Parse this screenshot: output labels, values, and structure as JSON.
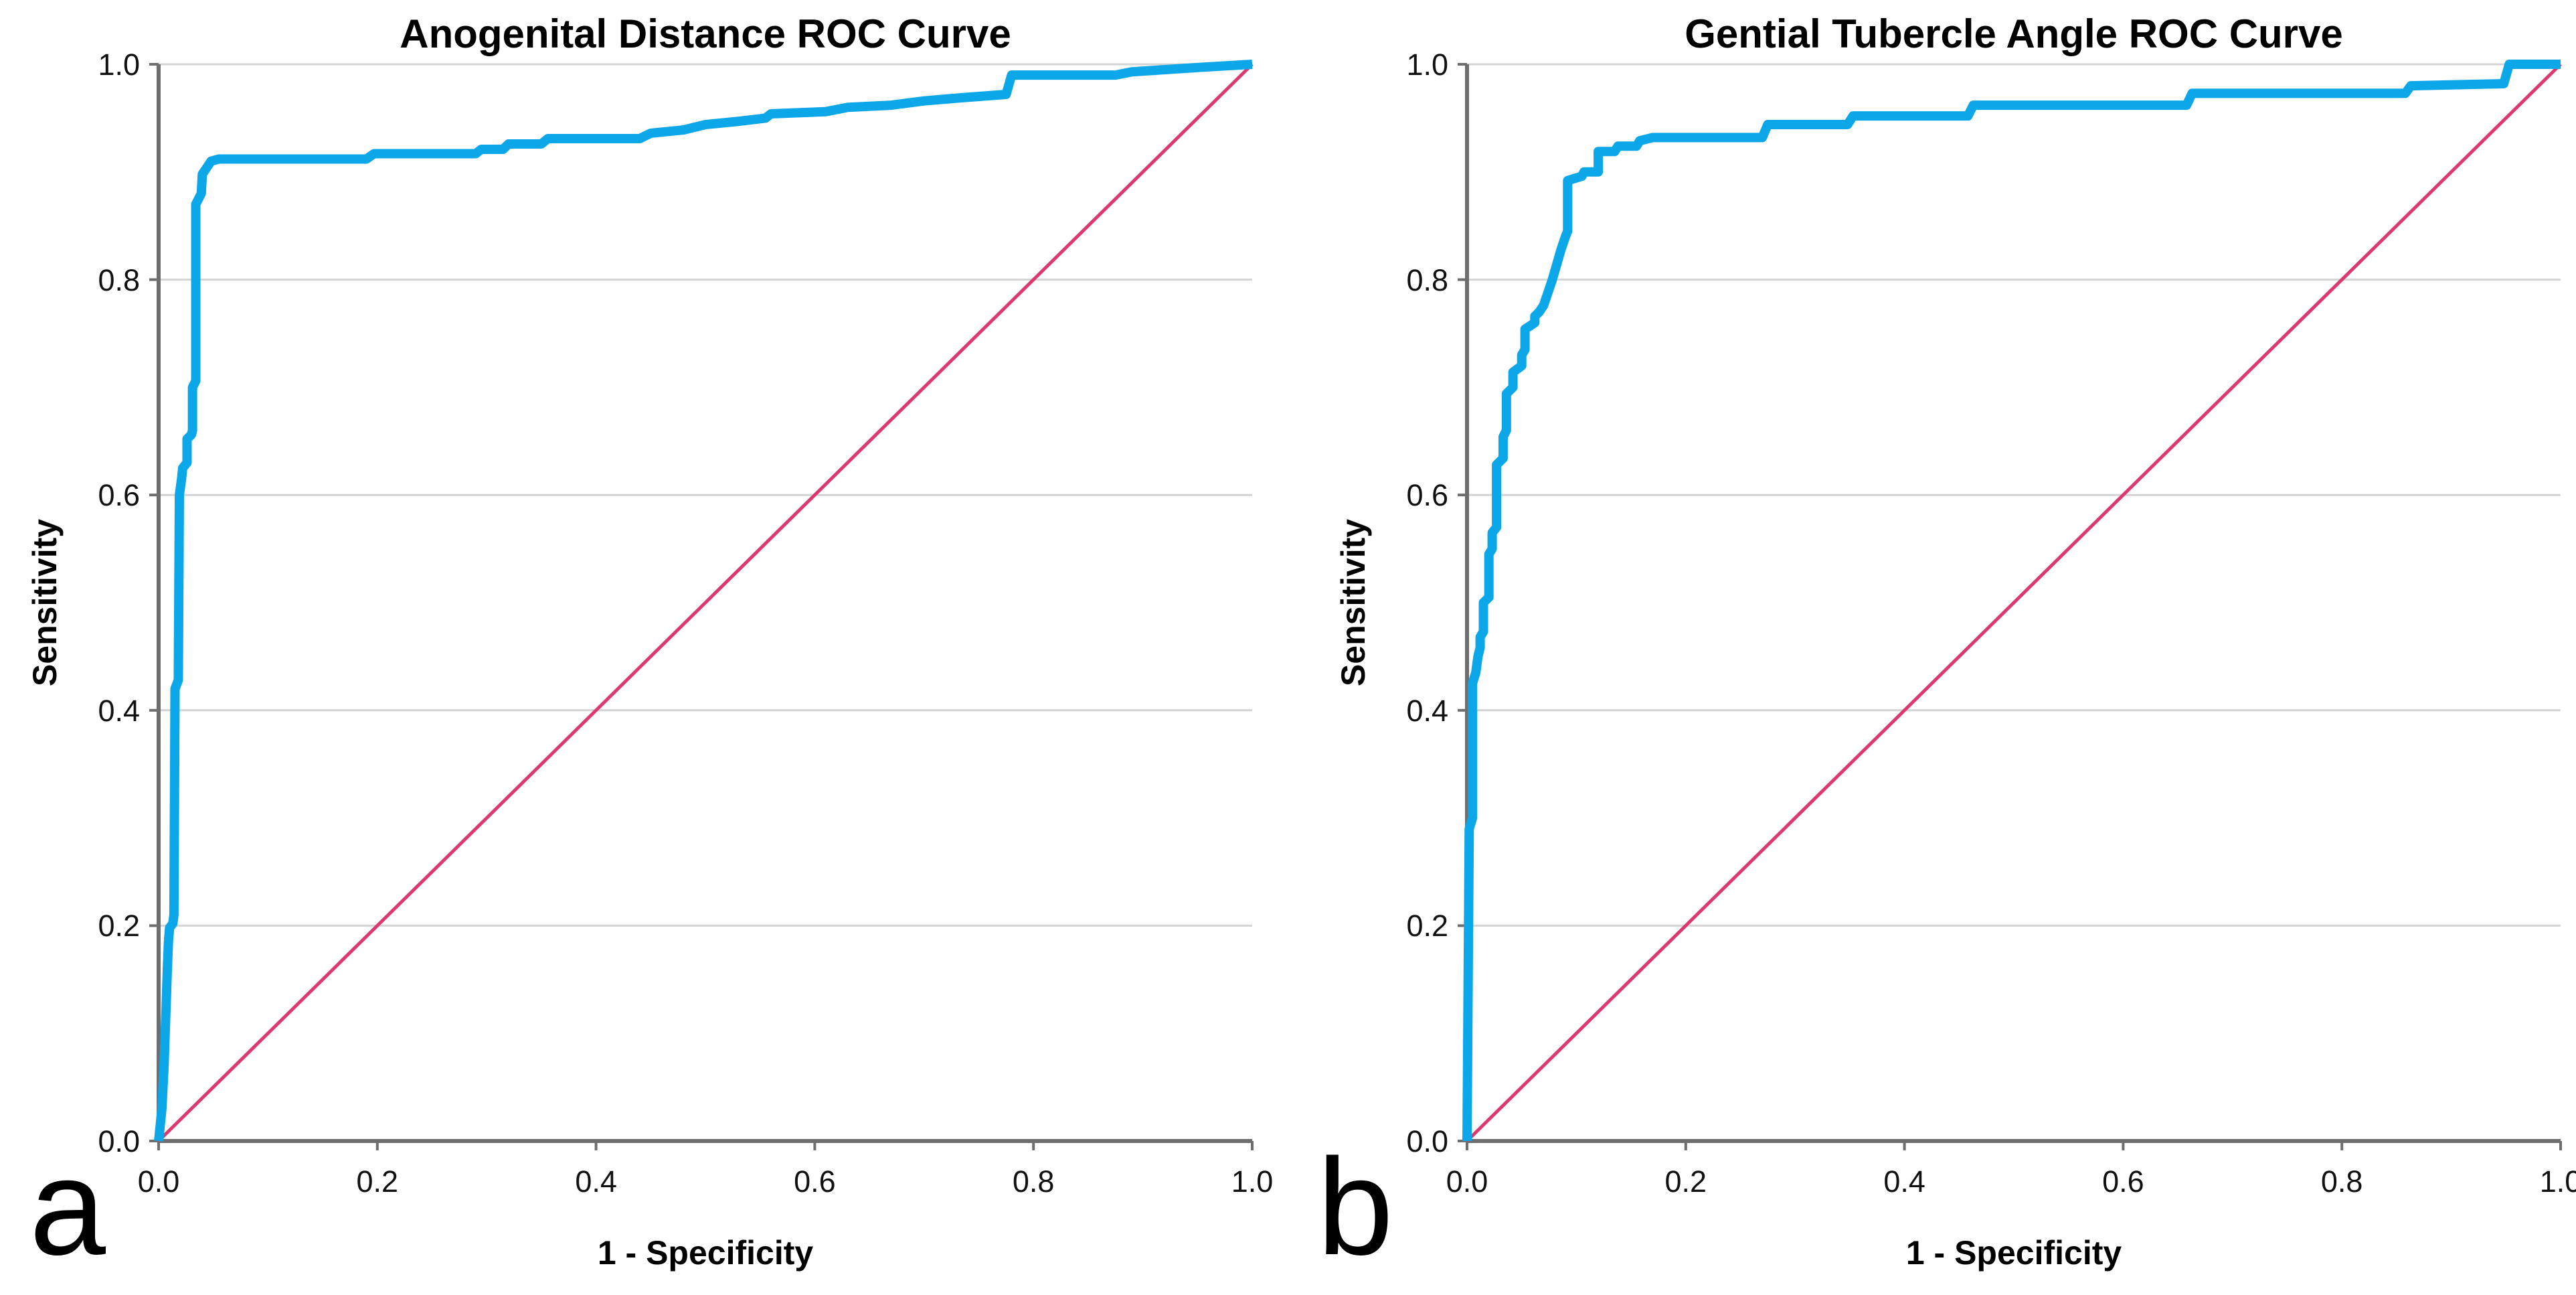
{
  "figure": {
    "panels": [
      {
        "letter": "a",
        "title": "Anogenital Distance ROC Curve",
        "x_axis_label": "1 - Specificity",
        "y_axis_label": "Sensitivity"
      },
      {
        "letter": "b",
        "title": "Gential Tubercle Angle ROC Curve",
        "x_axis_label": "1 - Specificity",
        "y_axis_label": "Sensitivity"
      }
    ]
  },
  "chart_data": [
    {
      "type": "line",
      "title": "Anogenital Distance ROC Curve",
      "xlabel": "1 - Specificity",
      "ylabel": "Sensitivity",
      "xlim": [
        0,
        1
      ],
      "ylim": [
        0,
        1
      ],
      "xticks": [
        0,
        0.2,
        0.4,
        0.6,
        0.8,
        1.0
      ],
      "yticks": [
        0,
        0.2,
        0.4,
        0.6,
        0.8,
        1.0
      ],
      "xtick_labels": [
        "0.0",
        "0.2",
        "0.4",
        "0.6",
        "0.8",
        "1.0"
      ],
      "ytick_labels": [
        "0.0",
        "0.2",
        "0.4",
        "0.6",
        "0.8",
        "1.0"
      ],
      "grid": "horizontal",
      "grid_color": "#d4d4d4",
      "axis_color": "#6e6e6e",
      "legend": "none",
      "series": [
        {
          "name": "ROC curve",
          "color": "#0ba7e9",
          "width": 14,
          "points": [
            [
              0,
              0
            ],
            [
              0.003,
              0.03
            ],
            [
              0.005,
              0.07
            ],
            [
              0.006,
              0.1
            ],
            [
              0.007,
              0.13
            ],
            [
              0.008,
              0.16
            ],
            [
              0.009,
              0.185
            ],
            [
              0.01,
              0.198
            ],
            [
              0.013,
              0.202
            ],
            [
              0.014,
              0.21
            ],
            [
              0.015,
              0.42
            ],
            [
              0.018,
              0.428
            ],
            [
              0.019,
              0.6
            ],
            [
              0.021,
              0.615
            ],
            [
              0.022,
              0.625
            ],
            [
              0.026,
              0.63
            ],
            [
              0.026,
              0.652
            ],
            [
              0.03,
              0.656
            ],
            [
              0.031,
              0.66
            ],
            [
              0.031,
              0.7
            ],
            [
              0.034,
              0.706
            ],
            [
              0.034,
              0.87
            ],
            [
              0.037,
              0.876
            ],
            [
              0.039,
              0.88
            ],
            [
              0.04,
              0.898
            ],
            [
              0.044,
              0.904
            ],
            [
              0.048,
              0.91
            ],
            [
              0.055,
              0.912
            ],
            [
              0.19,
              0.912
            ],
            [
              0.197,
              0.917
            ],
            [
              0.29,
              0.917
            ],
            [
              0.295,
              0.921
            ],
            [
              0.315,
              0.921
            ],
            [
              0.32,
              0.926
            ],
            [
              0.35,
              0.926
            ],
            [
              0.356,
              0.931
            ],
            [
              0.44,
              0.931
            ],
            [
              0.45,
              0.936
            ],
            [
              0.48,
              0.939
            ],
            [
              0.5,
              0.944
            ],
            [
              0.53,
              0.947
            ],
            [
              0.555,
              0.95
            ],
            [
              0.56,
              0.954
            ],
            [
              0.61,
              0.956
            ],
            [
              0.63,
              0.96
            ],
            [
              0.67,
              0.962
            ],
            [
              0.7,
              0.966
            ],
            [
              0.735,
              0.969
            ],
            [
              0.775,
              0.972
            ],
            [
              0.78,
              0.99
            ],
            [
              0.875,
              0.99
            ],
            [
              0.89,
              0.993
            ],
            [
              0.95,
              0.997
            ],
            [
              1,
              1
            ]
          ]
        },
        {
          "name": "Reference diagonal",
          "color": "#dc3a6e",
          "width": 5,
          "points": [
            [
              0,
              0
            ],
            [
              1,
              1
            ]
          ]
        }
      ]
    },
    {
      "type": "line",
      "title": "Gential Tubercle Angle ROC Curve",
      "xlabel": "1 - Specificity",
      "ylabel": "Sensitivity",
      "xlim": [
        0,
        1
      ],
      "ylim": [
        0,
        1
      ],
      "xticks": [
        0,
        0.2,
        0.4,
        0.6,
        0.8,
        1.0
      ],
      "yticks": [
        0,
        0.2,
        0.4,
        0.6,
        0.8,
        1.0
      ],
      "xtick_labels": [
        "0.0",
        "0.2",
        "0.4",
        "0.6",
        "0.8",
        "1.0"
      ],
      "ytick_labels": [
        "0.0",
        "0.2",
        "0.4",
        "0.6",
        "0.8",
        "1.0"
      ],
      "grid": "horizontal",
      "grid_color": "#d4d4d4",
      "axis_color": "#6e6e6e",
      "legend": "none",
      "series": [
        {
          "name": "ROC curve",
          "color": "#0ba7e9",
          "width": 14,
          "points": [
            [
              0,
              0
            ],
            [
              0.002,
              0.29
            ],
            [
              0.005,
              0.3
            ],
            [
              0.005,
              0.425
            ],
            [
              0.008,
              0.435
            ],
            [
              0.01,
              0.45
            ],
            [
              0.012,
              0.458
            ],
            [
              0.012,
              0.468
            ],
            [
              0.015,
              0.473
            ],
            [
              0.015,
              0.5
            ],
            [
              0.02,
              0.505
            ],
            [
              0.02,
              0.545
            ],
            [
              0.023,
              0.55
            ],
            [
              0.023,
              0.565
            ],
            [
              0.027,
              0.57
            ],
            [
              0.027,
              0.628
            ],
            [
              0.033,
              0.634
            ],
            [
              0.033,
              0.654
            ],
            [
              0.036,
              0.66
            ],
            [
              0.036,
              0.694
            ],
            [
              0.042,
              0.7
            ],
            [
              0.042,
              0.714
            ],
            [
              0.05,
              0.72
            ],
            [
              0.05,
              0.73
            ],
            [
              0.053,
              0.735
            ],
            [
              0.053,
              0.754
            ],
            [
              0.062,
              0.76
            ],
            [
              0.062,
              0.766
            ],
            [
              0.066,
              0.77
            ],
            [
              0.07,
              0.776
            ],
            [
              0.073,
              0.785
            ],
            [
              0.078,
              0.8
            ],
            [
              0.082,
              0.814
            ],
            [
              0.086,
              0.828
            ],
            [
              0.09,
              0.84
            ],
            [
              0.092,
              0.845
            ],
            [
              0.092,
              0.892
            ],
            [
              0.105,
              0.896
            ],
            [
              0.107,
              0.9
            ],
            [
              0.12,
              0.9
            ],
            [
              0.12,
              0.919
            ],
            [
              0.135,
              0.919
            ],
            [
              0.138,
              0.924
            ],
            [
              0.155,
              0.924
            ],
            [
              0.158,
              0.929
            ],
            [
              0.17,
              0.932
            ],
            [
              0.27,
              0.932
            ],
            [
              0.275,
              0.944
            ],
            [
              0.348,
              0.944
            ],
            [
              0.353,
              0.952
            ],
            [
              0.458,
              0.952
            ],
            [
              0.463,
              0.962
            ],
            [
              0.658,
              0.962
            ],
            [
              0.663,
              0.973
            ],
            [
              0.858,
              0.973
            ],
            [
              0.863,
              0.98
            ],
            [
              0.948,
              0.982
            ],
            [
              0.953,
              1.0
            ],
            [
              1,
              1
            ]
          ]
        },
        {
          "name": "Reference diagonal",
          "color": "#dc3a6e",
          "width": 5,
          "points": [
            [
              0,
              0
            ],
            [
              1,
              1
            ]
          ]
        }
      ]
    }
  ]
}
